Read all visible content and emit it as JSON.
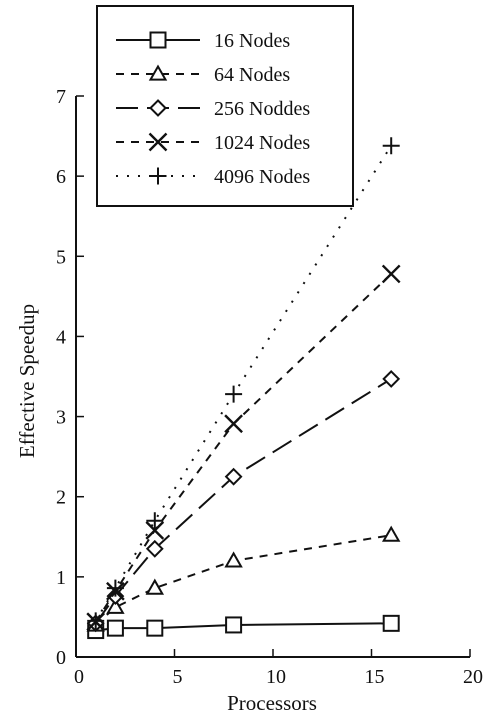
{
  "chart_data": {
    "type": "line",
    "title": "",
    "xlabel": "Processors",
    "ylabel": "Effective Speedup",
    "xlim": [
      0,
      20
    ],
    "ylim": [
      0,
      7
    ],
    "xticks": [
      0,
      5,
      10,
      15,
      20
    ],
    "yticks": [
      0,
      1,
      2,
      3,
      4,
      5,
      6,
      7
    ],
    "grid": false,
    "legend_position": "top",
    "series": [
      {
        "name": "16 Nodes",
        "marker": "square",
        "line": "solid",
        "x": [
          1,
          2,
          4,
          8,
          16
        ],
        "y": [
          0.33,
          0.36,
          0.36,
          0.4,
          0.42
        ]
      },
      {
        "name": "64 Nodes",
        "marker": "triangle",
        "line": "dashed",
        "x": [
          1,
          2,
          4,
          8,
          16
        ],
        "y": [
          0.4,
          0.62,
          0.86,
          1.2,
          1.52
        ]
      },
      {
        "name": "256 Noddes",
        "marker": "diamond",
        "line": "longdash",
        "x": [
          1,
          2,
          4,
          8,
          16
        ],
        "y": [
          0.42,
          0.76,
          1.35,
          2.25,
          3.47
        ]
      },
      {
        "name": "1024 Nodes",
        "marker": "x",
        "line": "dashed",
        "x": [
          1,
          2,
          4,
          8,
          16
        ],
        "y": [
          0.44,
          0.82,
          1.58,
          2.91,
          4.78
        ]
      },
      {
        "name": "4096 Nodes",
        "marker": "plus",
        "line": "dotted",
        "x": [
          1,
          2,
          4,
          8,
          16
        ],
        "y": [
          0.45,
          0.86,
          1.7,
          3.28,
          6.38
        ]
      }
    ]
  }
}
